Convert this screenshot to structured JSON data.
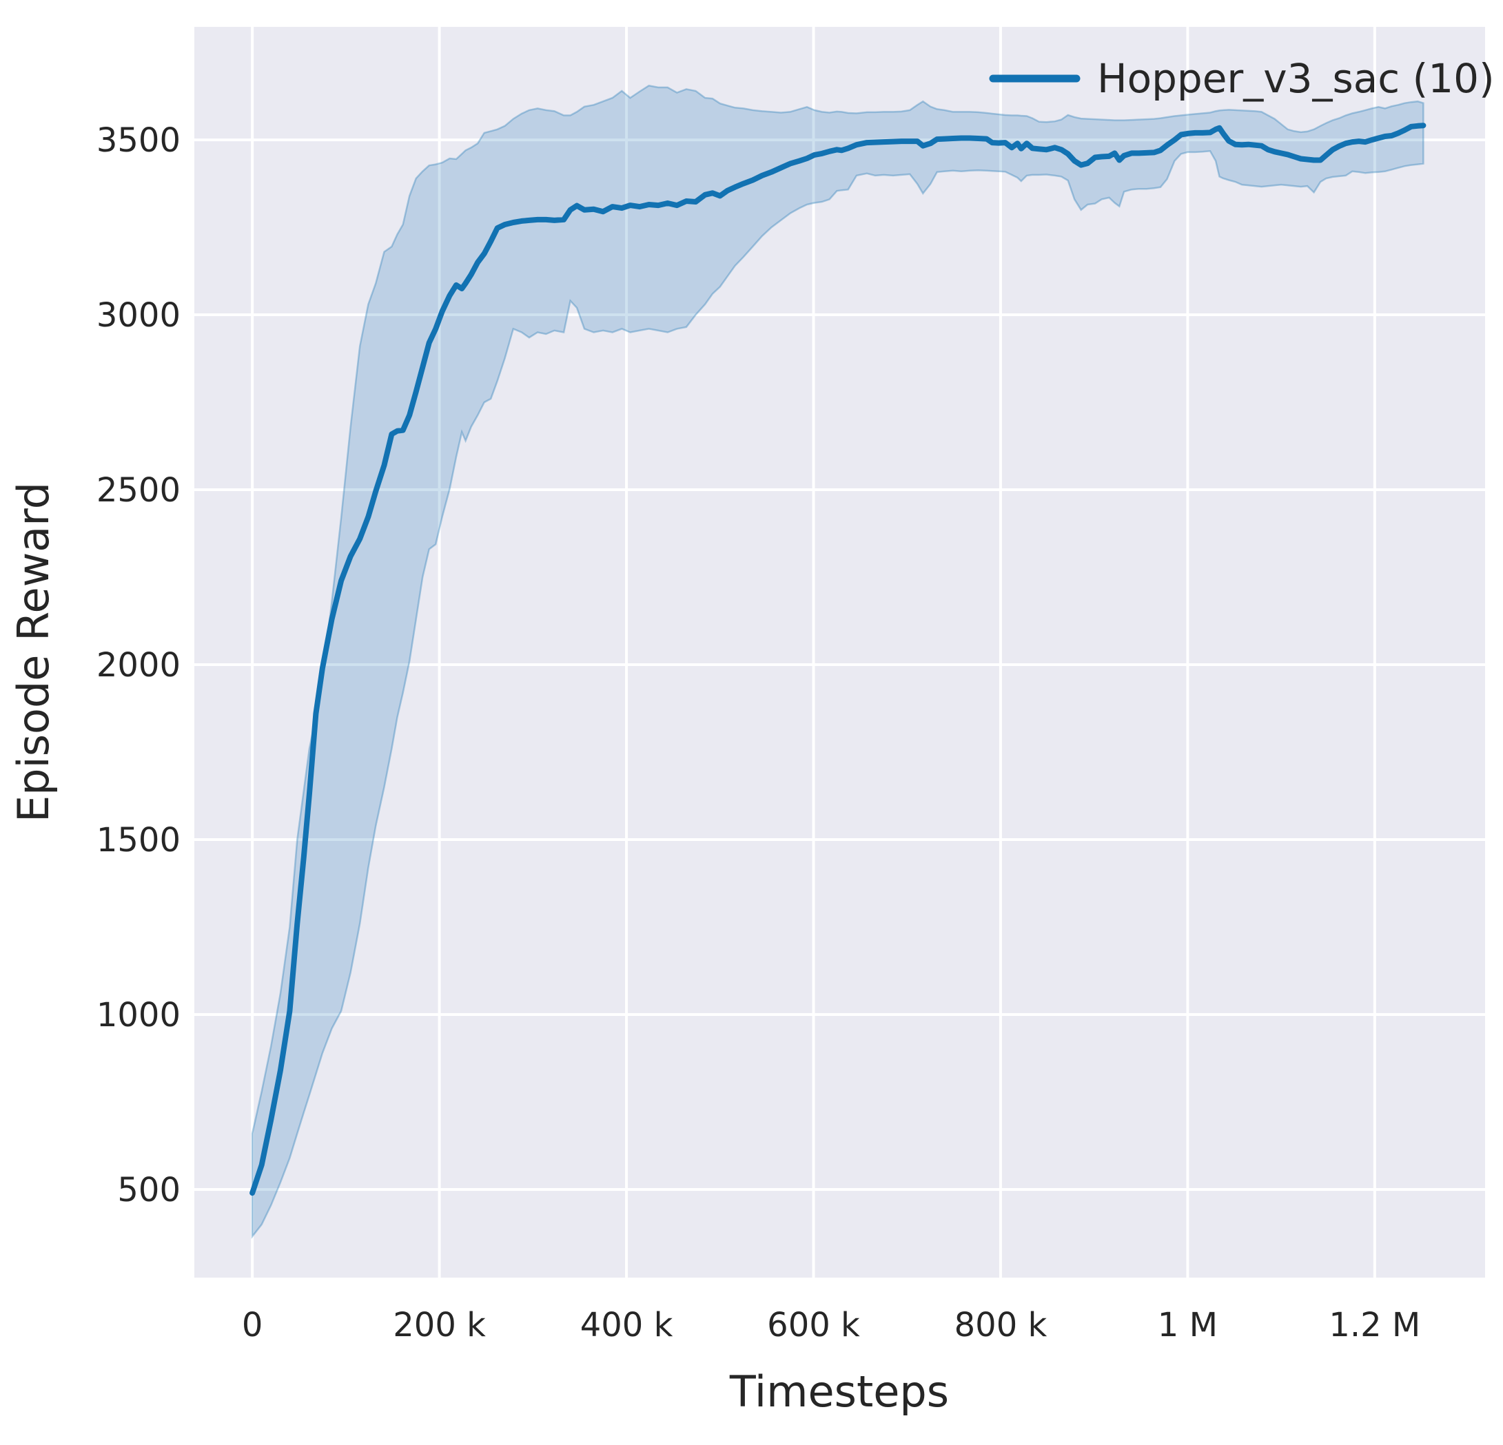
{
  "figure": {
    "background": "#ffffff",
    "plot_background": "#eaeaf2",
    "grid_color": "#ffffff",
    "text_color": "#262626"
  },
  "legend": {
    "label": "Hopper_v3_sac (10)",
    "line_color": "#1272b2",
    "position": "upper right"
  },
  "chart_data": {
    "type": "line",
    "title": "",
    "xlabel": "Timesteps",
    "ylabel": "Episode Reward",
    "x_unit": "timesteps, stored in thousands",
    "xlim_thousands": [
      -62,
      1318
    ],
    "ylim": [
      248,
      3823
    ],
    "grid": true,
    "x_ticks": [
      {
        "label": "0",
        "value": 0
      },
      {
        "label": "200 k",
        "value": 200
      },
      {
        "label": "400 k",
        "value": 400
      },
      {
        "label": "600 k",
        "value": 600
      },
      {
        "label": "800 k",
        "value": 800
      },
      {
        "label": "1 M",
        "value": 1000
      },
      {
        "label": "1.2 M",
        "value": 1200
      }
    ],
    "y_ticks": [
      {
        "label": "3500",
        "value": 3500
      },
      {
        "label": "3000",
        "value": 3000
      },
      {
        "label": "2500",
        "value": 2500
      },
      {
        "label": "2000",
        "value": 2000
      },
      {
        "label": "1500",
        "value": 1500
      },
      {
        "label": "1000",
        "value": 1000
      },
      {
        "label": "500",
        "value": 500
      }
    ],
    "series": [
      {
        "name": "Hopper_v3_sac (10)",
        "color": "#1272b2",
        "band_alpha": 0.22,
        "points_x_mean_lo_hi": [
          [
            0,
            490,
            366,
            660
          ],
          [
            10,
            570,
            400,
            780
          ],
          [
            20,
            700,
            455,
            910
          ],
          [
            30,
            840,
            520,
            1060
          ],
          [
            40,
            1010,
            590,
            1250
          ],
          [
            48,
            1260,
            660,
            1500
          ],
          [
            55,
            1450,
            720,
            1640
          ],
          [
            61,
            1630,
            770,
            1760
          ],
          [
            68,
            1860,
            830,
            1850
          ],
          [
            75,
            1990,
            890,
            1960
          ],
          [
            85,
            2130,
            960,
            2180
          ],
          [
            95,
            2240,
            1010,
            2420
          ],
          [
            105,
            2310,
            1120,
            2680
          ],
          [
            115,
            2360,
            1260,
            2910
          ],
          [
            124,
            2423,
            1420,
            3030
          ],
          [
            132,
            2496,
            1540,
            3090
          ],
          [
            141,
            2570,
            1650,
            3180
          ],
          [
            149,
            2659,
            1760,
            3195
          ],
          [
            155,
            2668,
            1850,
            3230
          ],
          [
            161,
            2670,
            1920,
            3258
          ],
          [
            168,
            2713,
            2010,
            3340
          ],
          [
            175,
            2780,
            2130,
            3390
          ],
          [
            182,
            2850,
            2250,
            3410
          ],
          [
            189,
            2920,
            2330,
            3427
          ],
          [
            196,
            2960,
            2344,
            3430
          ],
          [
            203,
            3010,
            2423,
            3435
          ],
          [
            211,
            3055,
            2502,
            3447
          ],
          [
            218,
            3085,
            2594,
            3445
          ],
          [
            224,
            3075,
            2665,
            3460
          ],
          [
            228,
            3090,
            2640,
            3470
          ],
          [
            234,
            3115,
            2680,
            3478
          ],
          [
            241,
            3150,
            2713,
            3490
          ],
          [
            248,
            3175,
            2750,
            3520
          ],
          [
            255,
            3210,
            2760,
            3525
          ],
          [
            262,
            3248,
            2811,
            3530
          ],
          [
            270,
            3258,
            2876,
            3540
          ],
          [
            279,
            3264,
            2960,
            3560
          ],
          [
            288,
            3268,
            2950,
            3575
          ],
          [
            296,
            3270,
            2935,
            3585
          ],
          [
            305,
            3272,
            2950,
            3590
          ],
          [
            314,
            3272,
            2945,
            3585
          ],
          [
            323,
            3270,
            2955,
            3582
          ],
          [
            333,
            3272,
            2950,
            3570
          ],
          [
            340,
            3300,
            3040,
            3570
          ],
          [
            347,
            3312,
            3020,
            3580
          ],
          [
            355,
            3300,
            2960,
            3595
          ],
          [
            365,
            3302,
            2950,
            3600
          ],
          [
            375,
            3295,
            2955,
            3610
          ],
          [
            385,
            3309,
            2950,
            3620
          ],
          [
            395,
            3305,
            2960,
            3640
          ],
          [
            404,
            3313,
            2950,
            3620
          ],
          [
            414,
            3309,
            2955,
            3638
          ],
          [
            424,
            3315,
            2960,
            3655
          ],
          [
            434,
            3313,
            2955,
            3650
          ],
          [
            444,
            3319,
            2950,
            3650
          ],
          [
            454,
            3313,
            2960,
            3635
          ],
          [
            464,
            3325,
            2965,
            3645
          ],
          [
            474,
            3323,
            3000,
            3640
          ],
          [
            484,
            3343,
            3030,
            3620
          ],
          [
            492,
            3348,
            3060,
            3618
          ],
          [
            500,
            3340,
            3080,
            3604
          ],
          [
            508,
            3355,
            3110,
            3598
          ],
          [
            516,
            3365,
            3140,
            3592
          ],
          [
            525,
            3375,
            3165,
            3590
          ],
          [
            535,
            3385,
            3195,
            3585
          ],
          [
            545,
            3398,
            3225,
            3582
          ],
          [
            555,
            3408,
            3250,
            3580
          ],
          [
            565,
            3420,
            3270,
            3578
          ],
          [
            575,
            3432,
            3290,
            3580
          ],
          [
            585,
            3440,
            3305,
            3588
          ],
          [
            593,
            3447,
            3315,
            3594
          ],
          [
            601,
            3457,
            3320,
            3585
          ],
          [
            609,
            3461,
            3323,
            3580
          ],
          [
            617,
            3467,
            3330,
            3578
          ],
          [
            625,
            3472,
            3354,
            3581
          ],
          [
            630,
            3470,
            3356,
            3580
          ],
          [
            637,
            3476,
            3358,
            3577
          ],
          [
            646,
            3486,
            3398,
            3576
          ],
          [
            657,
            3492,
            3404,
            3579
          ],
          [
            666,
            3493,
            3398,
            3579
          ],
          [
            675,
            3494,
            3400,
            3580
          ],
          [
            685,
            3495,
            3398,
            3580
          ],
          [
            694,
            3496,
            3400,
            3581
          ],
          [
            703,
            3496,
            3402,
            3585
          ],
          [
            711,
            3496,
            3374,
            3600
          ],
          [
            717,
            3483,
            3347,
            3610
          ],
          [
            725,
            3490,
            3374,
            3595
          ],
          [
            732,
            3502,
            3408,
            3588
          ],
          [
            740,
            3503,
            3410,
            3585
          ],
          [
            749,
            3504,
            3412,
            3580
          ],
          [
            758,
            3505,
            3410,
            3580
          ],
          [
            767,
            3505,
            3412,
            3580
          ],
          [
            776,
            3504,
            3413,
            3579
          ],
          [
            785,
            3503,
            3412,
            3577
          ],
          [
            791,
            3492,
            3411,
            3575
          ],
          [
            798,
            3491,
            3410,
            3573
          ],
          [
            805,
            3492,
            3409,
            3571
          ],
          [
            812,
            3478,
            3400,
            3570
          ],
          [
            818,
            3490,
            3392,
            3570
          ],
          [
            822,
            3475,
            3382,
            3569
          ],
          [
            828,
            3490,
            3398,
            3568
          ],
          [
            834,
            3476,
            3400,
            3562
          ],
          [
            841,
            3474,
            3400,
            3552
          ],
          [
            849,
            3472,
            3401,
            3551
          ],
          [
            858,
            3478,
            3398,
            3553
          ],
          [
            865,
            3472,
            3395,
            3558
          ],
          [
            872,
            3460,
            3384,
            3571
          ],
          [
            879,
            3440,
            3330,
            3565
          ],
          [
            886,
            3428,
            3300,
            3561
          ],
          [
            893,
            3433,
            3315,
            3560
          ],
          [
            901,
            3450,
            3318,
            3559
          ],
          [
            908,
            3452,
            3330,
            3558
          ],
          [
            916,
            3453,
            3335,
            3557
          ],
          [
            922,
            3462,
            3320,
            3556
          ],
          [
            927,
            3442,
            3310,
            3556
          ],
          [
            932,
            3455,
            3352,
            3556
          ],
          [
            940,
            3462,
            3358,
            3557
          ],
          [
            948,
            3462,
            3360,
            3558
          ],
          [
            956,
            3463,
            3360,
            3559
          ],
          [
            964,
            3464,
            3362,
            3560
          ],
          [
            971,
            3470,
            3365,
            3562
          ],
          [
            978,
            3485,
            3388,
            3565
          ],
          [
            986,
            3500,
            3440,
            3568
          ],
          [
            993,
            3515,
            3460,
            3570
          ],
          [
            1000,
            3518,
            3465,
            3572
          ],
          [
            1008,
            3520,
            3465,
            3574
          ],
          [
            1016,
            3520,
            3466,
            3576
          ],
          [
            1024,
            3521,
            3468,
            3578
          ],
          [
            1030,
            3530,
            3440,
            3582
          ],
          [
            1034,
            3534,
            3395,
            3584
          ],
          [
            1038,
            3518,
            3390,
            3585
          ],
          [
            1044,
            3497,
            3385,
            3586
          ],
          [
            1051,
            3487,
            3380,
            3585
          ],
          [
            1058,
            3486,
            3372,
            3584
          ],
          [
            1065,
            3487,
            3370,
            3583
          ],
          [
            1072,
            3485,
            3368,
            3582
          ],
          [
            1079,
            3483,
            3366,
            3580
          ],
          [
            1086,
            3472,
            3368,
            3570
          ],
          [
            1093,
            3466,
            3370,
            3560
          ],
          [
            1100,
            3462,
            3372,
            3545
          ],
          [
            1107,
            3458,
            3370,
            3530
          ],
          [
            1114,
            3452,
            3368,
            3525
          ],
          [
            1121,
            3446,
            3366,
            3522
          ],
          [
            1128,
            3444,
            3368,
            3524
          ],
          [
            1135,
            3442,
            3350,
            3530
          ],
          [
            1142,
            3442,
            3380,
            3540
          ],
          [
            1148,
            3456,
            3390,
            3548
          ],
          [
            1155,
            3472,
            3394,
            3556
          ],
          [
            1162,
            3482,
            3396,
            3562
          ],
          [
            1169,
            3490,
            3398,
            3570
          ],
          [
            1176,
            3494,
            3410,
            3576
          ],
          [
            1183,
            3496,
            3408,
            3580
          ],
          [
            1190,
            3494,
            3405,
            3585
          ],
          [
            1197,
            3500,
            3407,
            3590
          ],
          [
            1204,
            3505,
            3408,
            3594
          ],
          [
            1211,
            3510,
            3410,
            3590
          ],
          [
            1218,
            3512,
            3415,
            3596
          ],
          [
            1225,
            3519,
            3420,
            3600
          ],
          [
            1232,
            3528,
            3425,
            3605
          ],
          [
            1239,
            3538,
            3428,
            3608
          ],
          [
            1246,
            3540,
            3430,
            3610
          ],
          [
            1252,
            3541,
            3432,
            3605
          ]
        ]
      }
    ]
  }
}
